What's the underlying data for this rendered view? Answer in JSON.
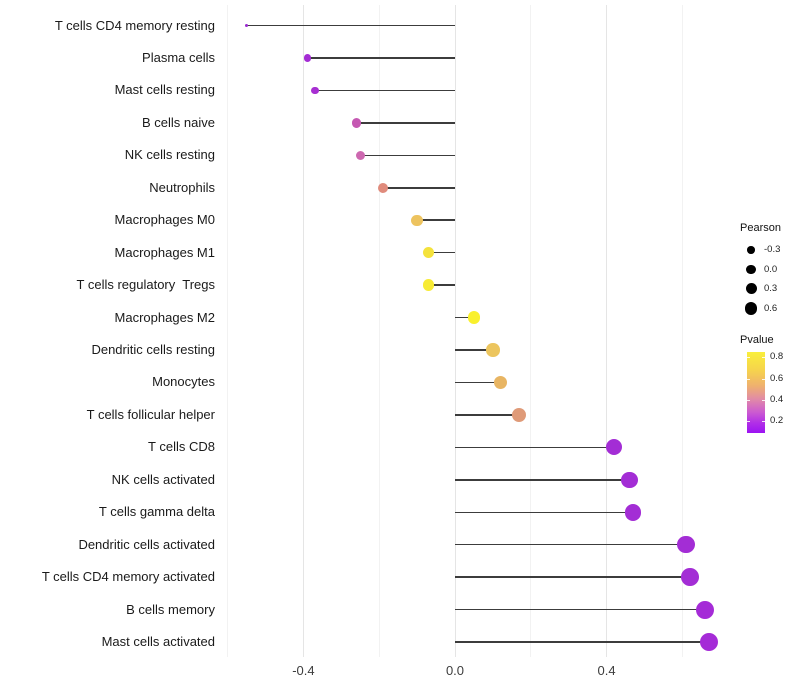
{
  "chart_data": {
    "type": "lollipop",
    "title": "",
    "xlabel": "",
    "ylabel": "",
    "x_range": [
      -0.6,
      0.73
    ],
    "grid": "vertical-only",
    "axis": {
      "major_ticks": [
        {
          "v": -0.4,
          "label": "-0.4"
        },
        {
          "v": 0.0,
          "label": "0.0"
        },
        {
          "v": 0.4,
          "label": "0.4"
        }
      ],
      "minor_ticks": [
        -0.6,
        -0.2,
        0.2,
        0.6
      ]
    },
    "baseline_value": 0.0,
    "stem_color": "#3c3c3c",
    "points": [
      {
        "category": "T cells CD4 memory resting",
        "pearson": -0.55,
        "pvalue_approx": 0.06,
        "color": "#9b2bd0"
      },
      {
        "category": "Plasma cells",
        "pearson": -0.39,
        "pvalue_approx": 0.07,
        "color": "#a42cd4"
      },
      {
        "category": "Mast cells resting",
        "pearson": -0.37,
        "pvalue_approx": 0.08,
        "color": "#a72fd2"
      },
      {
        "category": "B cells naive",
        "pearson": -0.26,
        "pvalue_approx": 0.27,
        "color": "#c558b2"
      },
      {
        "category": "NK cells resting",
        "pearson": -0.25,
        "pvalue_approx": 0.3,
        "color": "#cd68b0"
      },
      {
        "category": "Neutrophils",
        "pearson": -0.19,
        "pvalue_approx": 0.45,
        "color": "#e08b7c"
      },
      {
        "category": "Macrophages M0",
        "pearson": -0.1,
        "pvalue_approx": 0.63,
        "color": "#edc35f"
      },
      {
        "category": "Macrophages M1",
        "pearson": -0.07,
        "pvalue_approx": 0.72,
        "color": "#f4e23c"
      },
      {
        "category": "T cells regulatory  Tregs",
        "pearson": -0.07,
        "pvalue_approx": 0.76,
        "color": "#f7eb35"
      },
      {
        "category": "Macrophages M2",
        "pearson": 0.05,
        "pvalue_approx": 0.82,
        "color": "#f9f02d"
      },
      {
        "category": "Dendritic cells resting",
        "pearson": 0.1,
        "pvalue_approx": 0.62,
        "color": "#ecc55e"
      },
      {
        "category": "Monocytes",
        "pearson": 0.12,
        "pvalue_approx": 0.58,
        "color": "#e8b563"
      },
      {
        "category": "T cells follicular helper",
        "pearson": 0.17,
        "pvalue_approx": 0.44,
        "color": "#df9a78"
      },
      {
        "category": "T cells CD8",
        "pearson": 0.42,
        "pvalue_approx": 0.05,
        "color": "#a32dd5"
      },
      {
        "category": "NK cells activated",
        "pearson": 0.46,
        "pvalue_approx": 0.05,
        "color": "#a32dd5"
      },
      {
        "category": "T cells gamma delta",
        "pearson": 0.47,
        "pvalue_approx": 0.05,
        "color": "#a32dd5"
      },
      {
        "category": "Dendritic cells activated",
        "pearson": 0.61,
        "pvalue_approx": 0.05,
        "color": "#a32dd5"
      },
      {
        "category": "T cells CD4 memory activated",
        "pearson": 0.62,
        "pvalue_approx": 0.05,
        "color": "#a32dd5"
      },
      {
        "category": "B cells memory",
        "pearson": 0.66,
        "pvalue_approx": 0.05,
        "color": "#a52bd7"
      },
      {
        "category": "Mast cells activated",
        "pearson": 0.67,
        "pvalue_approx": 0.05,
        "color": "#a52bd7"
      }
    ],
    "legend_pearson": {
      "title": "Pearson",
      "items": [
        {
          "label": "-0.3"
        },
        {
          "label": "0.0"
        },
        {
          "label": "0.3"
        },
        {
          "label": "0.6"
        }
      ]
    },
    "legend_pvalue": {
      "title": "Pvalue",
      "ticks": [
        "0.8",
        "0.6",
        "0.4",
        "0.2"
      ],
      "gradient_top_to_bottom": [
        "#f9ef3b",
        "#f6d44c",
        "#efb06f",
        "#e18ba6",
        "#cc5cd0",
        "#b02ee8",
        "#9c13f2"
      ]
    }
  }
}
